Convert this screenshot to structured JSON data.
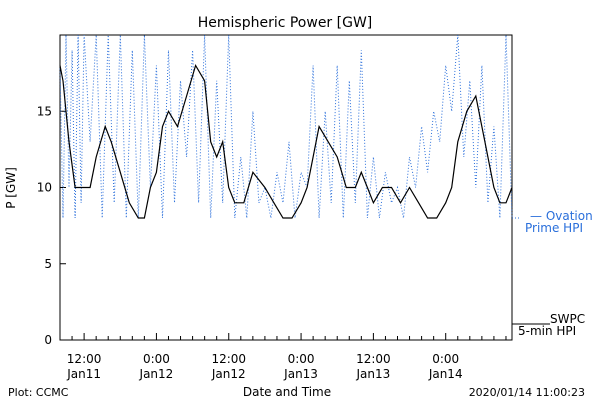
{
  "chart_data": {
    "type": "line",
    "title": "Hemispheric Power [GW]",
    "ylabel": "P [GW]",
    "xlabel": "Date and Time",
    "ylim": [
      0,
      20
    ],
    "yticks": [
      0,
      5,
      10,
      15
    ],
    "xlim": [
      "2020-01-11 08:00",
      "2020-01-14 11:00"
    ],
    "xticks": [
      {
        "t": "2020-01-11 12:00",
        "line1": "12:00",
        "line2": "Jan11"
      },
      {
        "t": "2020-01-12 00:00",
        "line1": "0:00",
        "line2": "Jan12"
      },
      {
        "t": "2020-01-12 12:00",
        "line1": "12:00",
        "line2": "Jan12"
      },
      {
        "t": "2020-01-13 00:00",
        "line1": "0:00",
        "line2": "Jan13"
      },
      {
        "t": "2020-01-13 12:00",
        "line1": "12:00",
        "line2": "Jan13"
      },
      {
        "t": "2020-01-14 00:00",
        "line1": "0:00",
        "line2": "Jan14"
      }
    ],
    "series": [
      {
        "name": "SWPC 5-min HPI",
        "color": "#000000",
        "style": "solid",
        "x": [
          "2020-01-11 08:00",
          "2020-01-11 08:30",
          "2020-01-11 09:30",
          "2020-01-11 10:30",
          "2020-01-11 11:00",
          "2020-01-11 13:00",
          "2020-01-11 14:00",
          "2020-01-11 15:30",
          "2020-01-11 16:30",
          "2020-01-11 18:00",
          "2020-01-11 19:30",
          "2020-01-11 21:00",
          "2020-01-11 22:00",
          "2020-01-11 23:00",
          "2020-01-12 00:00",
          "2020-01-12 01:00",
          "2020-01-12 02:00",
          "2020-01-12 03:30",
          "2020-01-12 05:00",
          "2020-01-12 06:30",
          "2020-01-12 08:00",
          "2020-01-12 09:00",
          "2020-01-12 10:00",
          "2020-01-12 11:00",
          "2020-01-12 12:00",
          "2020-01-12 13:00",
          "2020-01-12 14:30",
          "2020-01-12 16:00",
          "2020-01-12 18:00",
          "2020-01-12 19:30",
          "2020-01-12 21:00",
          "2020-01-12 22:30",
          "2020-01-13 00:00",
          "2020-01-13 01:00",
          "2020-01-13 02:00",
          "2020-01-13 03:00",
          "2020-01-13 04:30",
          "2020-01-13 06:00",
          "2020-01-13 07:30",
          "2020-01-13 09:00",
          "2020-01-13 10:00",
          "2020-01-13 11:00",
          "2020-01-13 12:00",
          "2020-01-13 13:30",
          "2020-01-13 15:00",
          "2020-01-13 16:30",
          "2020-01-13 18:00",
          "2020-01-13 19:30",
          "2020-01-13 21:00",
          "2020-01-13 22:30",
          "2020-01-14 00:00",
          "2020-01-14 01:00",
          "2020-01-14 02:00",
          "2020-01-14 03:30",
          "2020-01-14 05:00",
          "2020-01-14 06:30",
          "2020-01-14 08:00",
          "2020-01-14 09:00",
          "2020-01-14 10:00",
          "2020-01-14 11:00"
        ],
        "y": [
          18,
          17,
          13,
          10,
          10,
          10,
          12,
          14,
          13,
          11,
          9,
          8,
          8,
          10,
          11,
          14,
          15,
          14,
          16,
          18,
          17,
          13,
          12,
          13,
          10,
          9,
          9,
          11,
          10,
          9,
          8,
          8,
          9,
          10,
          12,
          14,
          13,
          12,
          10,
          10,
          11,
          10,
          9,
          10,
          10,
          9,
          10,
          9,
          8,
          8,
          9,
          10,
          13,
          15,
          16,
          13,
          10,
          9,
          9,
          10
        ]
      },
      {
        "name": "Ovation Prime HPI",
        "color": "#2a6fdb",
        "style": "dotted",
        "x": [
          "2020-01-11 08:00",
          "2020-01-11 08:30",
          "2020-01-11 09:00",
          "2020-01-11 09:30",
          "2020-01-11 10:00",
          "2020-01-11 10:30",
          "2020-01-11 11:00",
          "2020-01-11 11:30",
          "2020-01-11 12:00",
          "2020-01-11 13:00",
          "2020-01-11 14:00",
          "2020-01-11 15:00",
          "2020-01-11 16:00",
          "2020-01-11 17:00",
          "2020-01-11 18:00",
          "2020-01-11 19:00",
          "2020-01-11 20:00",
          "2020-01-11 21:00",
          "2020-01-11 22:00",
          "2020-01-11 23:00",
          "2020-01-12 00:00",
          "2020-01-12 01:00",
          "2020-01-12 02:00",
          "2020-01-12 03:00",
          "2020-01-12 04:00",
          "2020-01-12 05:00",
          "2020-01-12 06:00",
          "2020-01-12 07:00",
          "2020-01-12 08:00",
          "2020-01-12 09:00",
          "2020-01-12 10:00",
          "2020-01-12 11:00",
          "2020-01-12 12:00",
          "2020-01-12 13:00",
          "2020-01-12 14:00",
          "2020-01-12 15:00",
          "2020-01-12 16:00",
          "2020-01-12 17:00",
          "2020-01-12 18:00",
          "2020-01-12 19:00",
          "2020-01-12 20:00",
          "2020-01-12 21:00",
          "2020-01-12 22:00",
          "2020-01-12 23:00",
          "2020-01-13 00:00",
          "2020-01-13 01:00",
          "2020-01-13 02:00",
          "2020-01-13 03:00",
          "2020-01-13 04:00",
          "2020-01-13 05:00",
          "2020-01-13 06:00",
          "2020-01-13 07:00",
          "2020-01-13 08:00",
          "2020-01-13 09:00",
          "2020-01-13 10:00",
          "2020-01-13 11:00",
          "2020-01-13 12:00",
          "2020-01-13 13:00",
          "2020-01-13 14:00",
          "2020-01-13 15:00",
          "2020-01-13 16:00",
          "2020-01-13 17:00",
          "2020-01-13 18:00",
          "2020-01-13 19:00",
          "2020-01-13 20:00",
          "2020-01-13 21:00",
          "2020-01-13 22:00",
          "2020-01-13 23:00",
          "2020-01-14 00:00",
          "2020-01-14 01:00",
          "2020-01-14 02:00",
          "2020-01-14 03:00",
          "2020-01-14 04:00",
          "2020-01-14 05:00",
          "2020-01-14 06:00",
          "2020-01-14 07:00",
          "2020-01-14 08:00",
          "2020-01-14 09:00",
          "2020-01-14 10:00",
          "2020-01-14 11:00"
        ],
        "y": [
          18,
          8,
          20,
          10,
          19,
          8,
          20,
          9,
          20,
          13,
          20,
          8,
          20,
          9,
          20,
          8,
          19,
          8,
          20,
          10,
          18,
          8,
          19,
          9,
          17,
          12,
          19,
          9,
          20,
          8,
          17,
          9,
          20,
          8,
          12,
          8,
          15,
          9,
          10,
          8,
          11,
          9,
          13,
          8,
          11,
          10,
          18,
          8,
          15,
          9,
          18,
          8,
          17,
          9,
          19,
          8,
          12,
          8,
          11,
          9,
          10,
          8,
          12,
          10,
          14,
          11,
          15,
          13,
          18,
          15,
          20,
          12,
          17,
          10,
          18,
          9,
          14,
          8,
          20,
          8
        ]
      }
    ],
    "legend": [
      {
        "series": "Ovation Prime HPI",
        "line1": "— Ovation",
        "line2": "Prime HPI",
        "position": "right"
      },
      {
        "series": "SWPC 5-min HPI",
        "line1": "SWPC",
        "line2": "5-min HPI",
        "position": "right"
      }
    ]
  },
  "footer": {
    "left": "Plot: CCMC",
    "right": "2020/01/14 11:00:23"
  },
  "colors": {
    "ovation": "#2a6fdb",
    "swpc": "#000000",
    "axis": "#000000"
  }
}
